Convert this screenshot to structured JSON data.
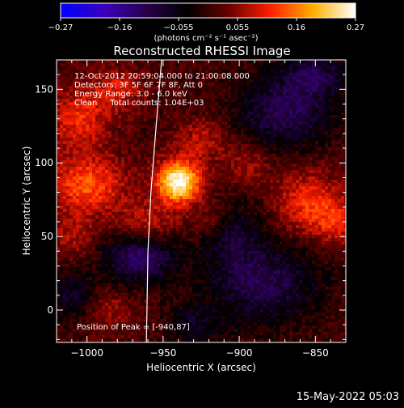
{
  "colorbar": {
    "tick_labels": [
      "-0.27",
      "-0.16",
      "-0.055",
      "0.055",
      "0.16",
      "0.27"
    ],
    "unit_label": "(photons cm⁻² s⁻¹ asec⁻²)",
    "min": -0.27,
    "max": 0.27,
    "colors": [
      "#0000ff",
      "#3a00c0",
      "#2a0050",
      "#000000",
      "#6a0000",
      "#ff2000",
      "#ffb000",
      "#ffffff"
    ]
  },
  "chart_data": {
    "type": "heatmap",
    "title": "Reconstructed RHESSI Image",
    "xlabel": "Heliocentric X (arcsec)",
    "ylabel": "Heliocentric Y (arcsec)",
    "xlim": [
      -1020,
      -830
    ],
    "ylim": [
      -22,
      170
    ],
    "x_ticks": [
      -1000,
      -950,
      -900,
      -850
    ],
    "y_ticks": [
      0,
      50,
      100,
      150
    ],
    "x_tick_labels": [
      "−1000",
      "−950",
      "−900",
      "−850"
    ],
    "y_tick_labels": [
      "0",
      "50",
      "100",
      "150"
    ],
    "annotations": [
      "12-Oct-2012 20:59:04.000 to 21:00:08.000",
      "Detectors: 3F 5F 6F 7F 8F, Att 0",
      "Energy Range: 3.0 - 6.0 keV",
      "Clean     Total counts: 1.04E+03"
    ],
    "peak_label": "Position of Peak = [-940,87]",
    "peak": {
      "x": -940,
      "y": 87,
      "value": 0.27
    },
    "limb_curve": [
      [
        -961,
        -22
      ],
      [
        -960,
        40
      ],
      [
        -958,
        80
      ],
      [
        -955,
        120
      ],
      [
        -951,
        170
      ]
    ],
    "sources": [
      {
        "x": -940,
        "y": 87,
        "amp": 0.27,
        "sx": 10,
        "sy": 10
      },
      {
        "x": -1000,
        "y": 85,
        "amp": 0.13,
        "sx": 18,
        "sy": 14
      },
      {
        "x": -1005,
        "y": 130,
        "amp": 0.1,
        "sx": 14,
        "sy": 14
      },
      {
        "x": -980,
        "y": 150,
        "amp": 0.08,
        "sx": 12,
        "sy": 10
      },
      {
        "x": -925,
        "y": 115,
        "amp": 0.07,
        "sx": 12,
        "sy": 10
      },
      {
        "x": -895,
        "y": 100,
        "amp": 0.06,
        "sx": 10,
        "sy": 10
      },
      {
        "x": -855,
        "y": 72,
        "amp": 0.11,
        "sx": 14,
        "sy": 16
      },
      {
        "x": -835,
        "y": 60,
        "amp": 0.08,
        "sx": 10,
        "sy": 12
      },
      {
        "x": -960,
        "y": 60,
        "amp": 0.07,
        "sx": 14,
        "sy": 10
      },
      {
        "x": -915,
        "y": 62,
        "amp": 0.06,
        "sx": 10,
        "sy": 8
      },
      {
        "x": -1010,
        "y": 50,
        "amp": 0.06,
        "sx": 10,
        "sy": 10
      },
      {
        "x": -985,
        "y": 0,
        "amp": 0.05,
        "sx": 12,
        "sy": 10
      },
      {
        "x": -965,
        "y": 35,
        "amp": -0.14,
        "sx": 16,
        "sy": 12
      },
      {
        "x": -870,
        "y": 135,
        "amp": -0.12,
        "sx": 22,
        "sy": 18
      },
      {
        "x": -885,
        "y": 20,
        "amp": -0.12,
        "sx": 26,
        "sy": 20
      },
      {
        "x": -905,
        "y": 55,
        "amp": -0.08,
        "sx": 12,
        "sy": 14
      },
      {
        "x": -1010,
        "y": 10,
        "amp": -0.08,
        "sx": 12,
        "sy": 12
      },
      {
        "x": -930,
        "y": -10,
        "amp": -0.07,
        "sx": 12,
        "sy": 10
      },
      {
        "x": -850,
        "y": 160,
        "amp": -0.1,
        "sx": 14,
        "sy": 10
      }
    ]
  },
  "footer": {
    "date": "15-May-2022 05:03"
  }
}
